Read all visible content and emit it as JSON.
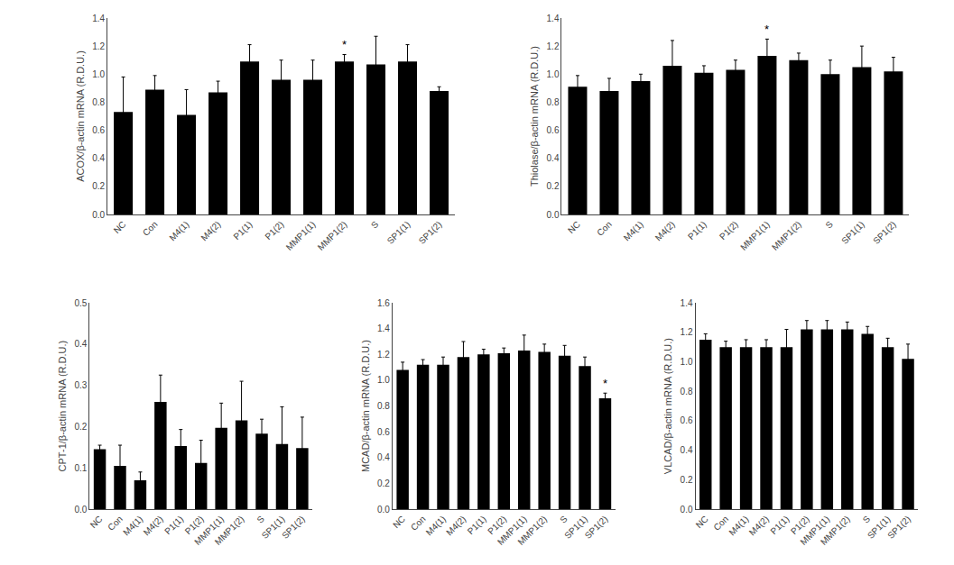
{
  "chart_data": [
    {
      "type": "bar",
      "categories": [
        "NC",
        "Con",
        "M4(1)",
        "M4(2)",
        "P1(1)",
        "P1(2)",
        "MMP1(1)",
        "MMP1(2)",
        "S",
        "SP1(1)",
        "SP1(2)"
      ],
      "values": [
        0.73,
        0.89,
        0.71,
        0.87,
        1.09,
        0.96,
        0.96,
        1.09,
        1.07,
        1.09,
        0.88
      ],
      "errors": [
        0.25,
        0.1,
        0.18,
        0.08,
        0.12,
        0.14,
        0.14,
        0.05,
        0.2,
        0.12,
        0.03
      ],
      "ylabel": "ACOX/β-actin mRNA (R.D.U.)",
      "ylim": [
        0.0,
        1.4
      ],
      "yticks": [
        {
          "value": 0,
          "label": "0.0"
        },
        0.2,
        0.4,
        0.6,
        0.8,
        {
          "value": 1,
          "label": "1.0"
        },
        1.2,
        1.4
      ],
      "color": "#000000",
      "grid": false,
      "annotations": [
        {
          "x": "MMP1(2)",
          "text": "*"
        }
      ]
    },
    {
      "type": "bar",
      "categories": [
        "NC",
        "Con",
        "M4(1)",
        "M4(2)",
        "P1(1)",
        "P1(2)",
        "MMP1(1)",
        "MMP1(2)",
        "S",
        "SP1(1)",
        "SP1(2)"
      ],
      "values": [
        0.91,
        0.88,
        0.95,
        1.06,
        1.01,
        1.03,
        1.13,
        1.1,
        1.0,
        1.05,
        1.02
      ],
      "errors": [
        0.08,
        0.09,
        0.05,
        0.18,
        0.05,
        0.07,
        0.12,
        0.05,
        0.1,
        0.15,
        0.1
      ],
      "ylabel": "Thiolase/β-actin mRNA (R.D.U.)",
      "ylim": [
        0.0,
        1.4
      ],
      "yticks": [
        {
          "value": 0,
          "label": "0.0"
        },
        0.2,
        0.4,
        0.6,
        0.8,
        {
          "value": 1,
          "label": "1.0"
        },
        1.2,
        1.4
      ],
      "color": "#000000",
      "grid": false,
      "annotations": [
        {
          "x": "MMP1(1)",
          "text": "*"
        }
      ]
    },
    {
      "type": "bar",
      "categories": [
        "NC",
        "Con",
        "M4(1)",
        "M4(2)",
        "P1(1)",
        "P1(2)",
        "MMP1(1)",
        "MMP1(2)",
        "S",
        "SP1(1)",
        "SP1(2)"
      ],
      "values": [
        0.145,
        0.105,
        0.07,
        0.26,
        0.153,
        0.112,
        0.197,
        0.215,
        0.183,
        0.158,
        0.148
      ],
      "errors": [
        0.01,
        0.05,
        0.02,
        0.065,
        0.04,
        0.055,
        0.06,
        0.095,
        0.035,
        0.09,
        0.075
      ],
      "ylabel": "CPT-1/β-actin mRNA (R.D.U.)",
      "ylim": [
        0.0,
        0.5
      ],
      "yticks": [
        {
          "value": 0,
          "label": "0.0"
        },
        0.1,
        0.2,
        0.3,
        0.4,
        0.5
      ],
      "color": "#000000",
      "grid": false
    },
    {
      "type": "bar",
      "categories": [
        "NC",
        "Con",
        "M4(1)",
        "M4(2)",
        "P1(1)",
        "P1(2)",
        "MMP1(1)",
        "MMP1(2)",
        "S",
        "SP1(1)",
        "SP1(2)"
      ],
      "values": [
        1.08,
        1.12,
        1.12,
        1.18,
        1.2,
        1.21,
        1.23,
        1.22,
        1.19,
        1.11,
        0.86
      ],
      "errors": [
        0.06,
        0.04,
        0.06,
        0.12,
        0.04,
        0.04,
        0.12,
        0.06,
        0.08,
        0.07,
        0.04
      ],
      "ylabel": "MCAD/β-actin mRNA (R.D.U.)",
      "ylim": [
        0.0,
        1.6
      ],
      "yticks": [
        {
          "value": 0,
          "label": "0.0"
        },
        0.2,
        0.4,
        0.6,
        0.8,
        {
          "value": 1,
          "label": "1.0"
        },
        1.2,
        1.4,
        1.6
      ],
      "color": "#000000",
      "grid": false,
      "annotations": [
        {
          "x": "SP1(2)",
          "text": "*"
        }
      ]
    },
    {
      "type": "bar",
      "categories": [
        "NC",
        "Con",
        "M4(1)",
        "M4(2)",
        "P1(1)",
        "P1(2)",
        "MMP1(1)",
        "MMP1(2)",
        "S",
        "SP1(1)",
        "SP1(2)"
      ],
      "values": [
        1.15,
        1.1,
        1.1,
        1.1,
        1.1,
        1.22,
        1.22,
        1.22,
        1.19,
        1.1,
        1.02
      ],
      "errors": [
        0.04,
        0.04,
        0.05,
        0.05,
        0.12,
        0.06,
        0.06,
        0.05,
        0.05,
        0.06,
        0.1
      ],
      "ylabel": "VLCAD/β-actin mRNA (R.D.U.)",
      "ylim": [
        0.0,
        1.4
      ],
      "yticks": [
        {
          "value": 0,
          "label": "0.0"
        },
        0.2,
        0.4,
        0.6,
        0.8,
        {
          "value": 1,
          "label": "1.0"
        },
        1.2,
        1.4
      ],
      "color": "#000000",
      "grid": false
    }
  ]
}
